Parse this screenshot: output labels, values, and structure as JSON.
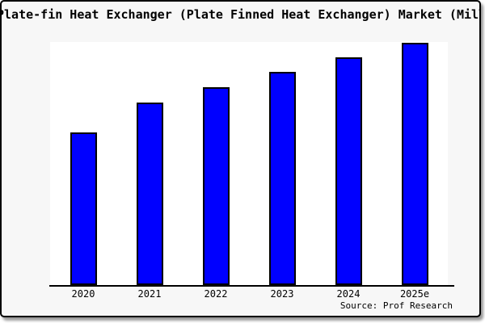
{
  "title": "Plate-fin Heat Exchanger (Plate Finned Heat Exchanger) Market (Mill",
  "source_credit": "Source: Prof Research",
  "colors": {
    "bar_fill": "#0000ff",
    "bar_border": "#000000",
    "figure_background": "#f7f7f7",
    "plot_background": "#ffffff",
    "axis_line": "#000000",
    "frame_border": "#000000",
    "text": "#000000"
  },
  "chart_data": {
    "type": "bar",
    "categories": [
      "2020",
      "2021",
      "2022",
      "2023",
      "2024",
      "2025e"
    ],
    "values": [
      63,
      75.3,
      81.7,
      88,
      94,
      100
    ],
    "title": "Plate-fin Heat Exchanger (Plate Finned Heat Exchanger) Market (Mill",
    "xlabel": "",
    "ylabel": "",
    "ylim": [
      0,
      100.3
    ],
    "grid": false,
    "legend": "none",
    "note": "Y axis has no visible ticks or labels in the screenshot; values are relative bar heights expressed as % of the tallest (2025e) bar."
  }
}
